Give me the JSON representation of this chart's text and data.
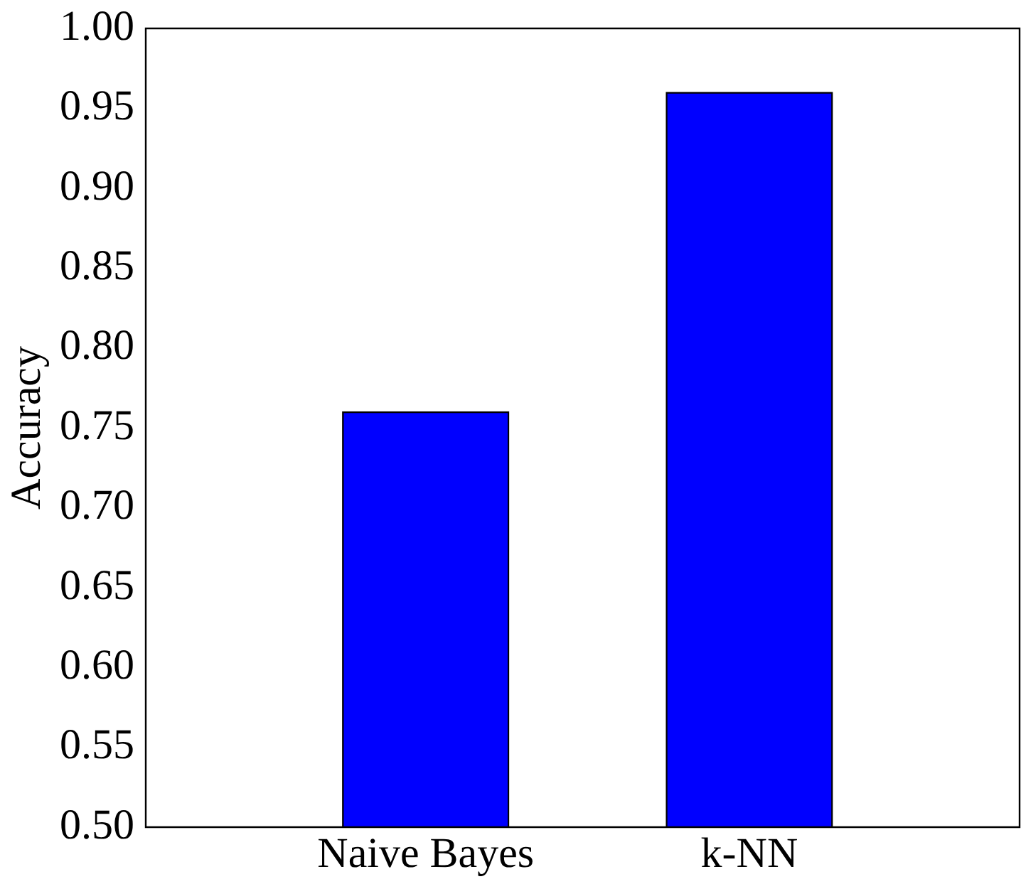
{
  "chart_data": {
    "type": "bar",
    "ylabel": "Accuracy",
    "categories": [
      "Naive Bayes",
      "k-NN"
    ],
    "values": [
      0.76,
      0.96
    ],
    "color": "#0000ff",
    "ylim": [
      0.5,
      1.0
    ],
    "yticks": [
      {
        "value": 0.5,
        "label": "0.50"
      },
      {
        "value": 0.55,
        "label": "0.55"
      },
      {
        "value": 0.6,
        "label": "0.60"
      },
      {
        "value": 0.65,
        "label": "0.65"
      },
      {
        "value": 0.7,
        "label": "0.70"
      },
      {
        "value": 0.75,
        "label": "0.75"
      },
      {
        "value": 0.8,
        "label": "0.80"
      },
      {
        "value": 0.85,
        "label": "0.85"
      },
      {
        "value": 0.9,
        "label": "0.90"
      },
      {
        "value": 0.95,
        "label": "0.95"
      },
      {
        "value": 1.0,
        "label": "1.00"
      }
    ],
    "grid": false,
    "legend": false
  }
}
